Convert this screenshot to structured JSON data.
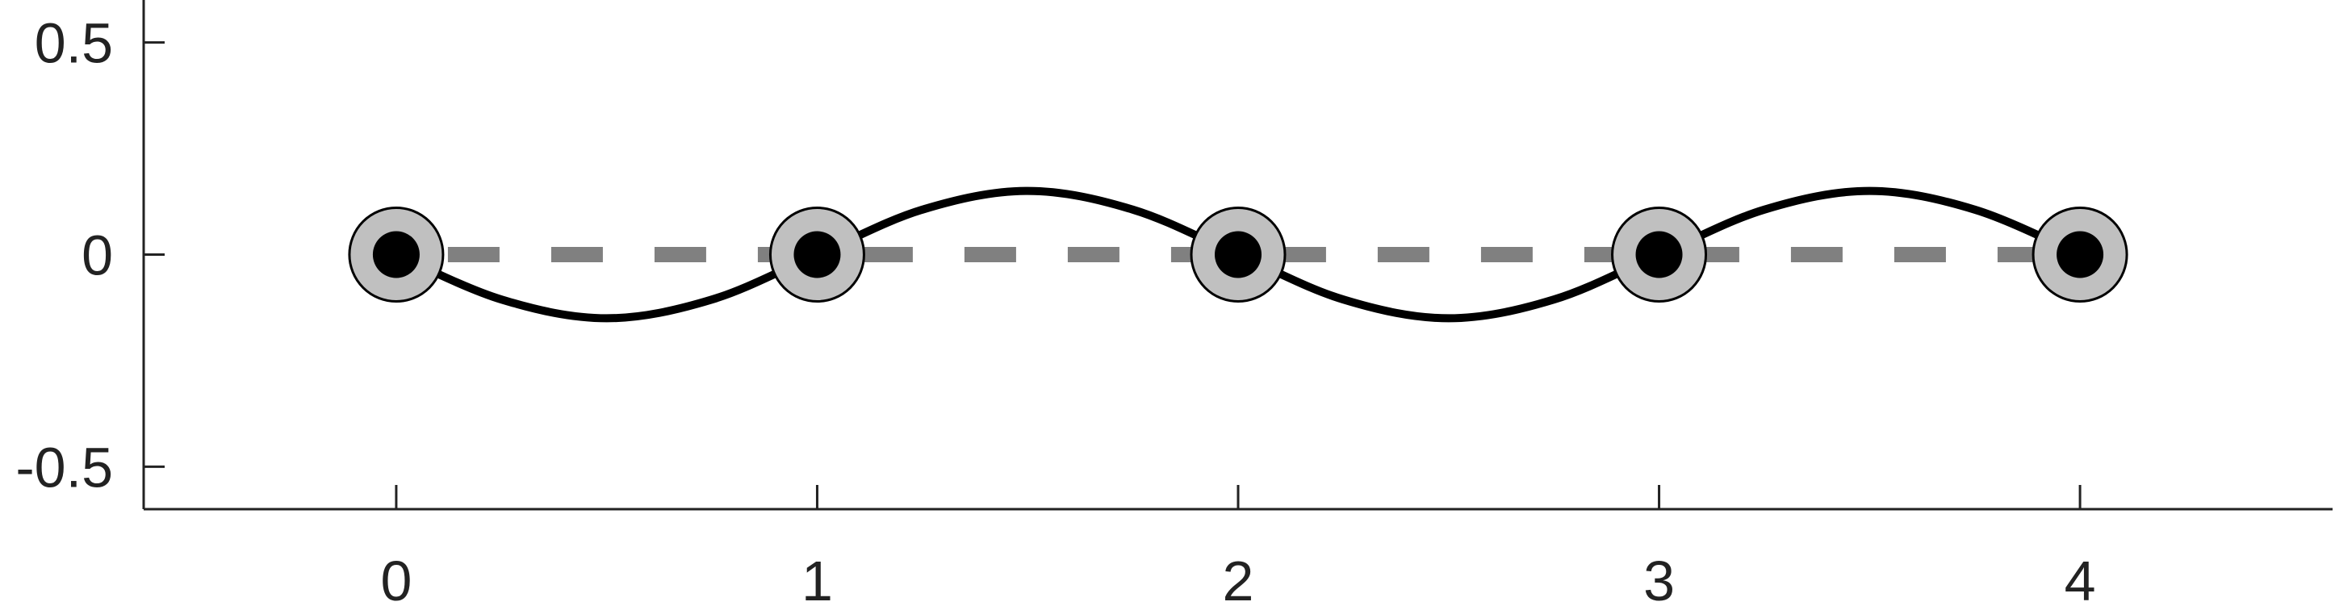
{
  "chart_data": {
    "type": "line",
    "title": "",
    "xlabel": "",
    "ylabel": "",
    "xlim": [
      -0.6,
      4.6
    ],
    "ylim": [
      -0.6,
      0.6
    ],
    "x_ticks": [
      0,
      1,
      2,
      3,
      4
    ],
    "x_tick_labels": [
      "0",
      "1",
      "2",
      "3",
      "4"
    ],
    "y_ticks": [
      0.5,
      0,
      -0.5
    ],
    "y_tick_labels": [
      "0.5",
      "0",
      "-0.5"
    ],
    "grid": false,
    "series": [
      {
        "style": "dashed",
        "color": "#808080",
        "x": [
          0,
          4
        ],
        "y": [
          0,
          0
        ]
      },
      {
        "style": "solid",
        "color": "#000000",
        "x": [
          0,
          0.25,
          0.5,
          0.75,
          1,
          1.25,
          1.5,
          1.75,
          2,
          2.25,
          2.5,
          2.75,
          3,
          3.25,
          3.5,
          3.75,
          4
        ],
        "y": [
          0,
          -0.106,
          -0.15,
          -0.106,
          0,
          0.106,
          0.15,
          0.106,
          0,
          -0.106,
          -0.15,
          -0.106,
          0,
          0.106,
          0.15,
          0.106,
          0
        ]
      }
    ],
    "markers": {
      "x": [
        0,
        1,
        2,
        3,
        4
      ],
      "y": [
        0,
        0,
        0,
        0,
        0
      ],
      "outer_fill": "#c0c0c0",
      "outer_stroke": "#000000",
      "inner_fill": "#000000"
    }
  }
}
